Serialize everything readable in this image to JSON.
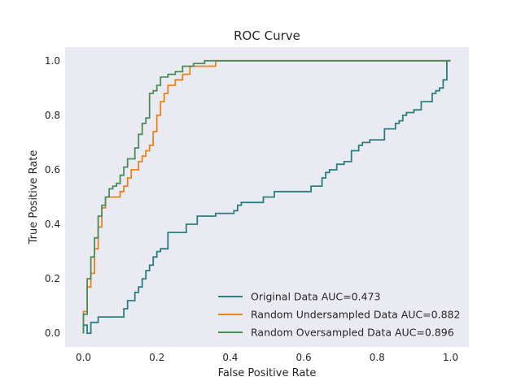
{
  "chart_data": {
    "type": "line",
    "title": "ROC Curve",
    "xlabel": "False Positive Rate",
    "ylabel": "True Positive Rate",
    "xlim": [
      -0.05,
      1.05
    ],
    "ylim": [
      -0.05,
      1.05
    ],
    "xticks": [
      "0.0",
      "0.2",
      "0.4",
      "0.6",
      "0.8",
      "1.0"
    ],
    "yticks": [
      "0.0",
      "0.2",
      "0.4",
      "0.6",
      "0.8",
      "1.0"
    ],
    "grid": false,
    "background": "#eaeaf2",
    "legend_position": "lower-right",
    "series": [
      {
        "name": "Original Data AUC=0.473",
        "color": "#2a7f7f",
        "x": [
          0.0,
          0.0,
          0.01,
          0.01,
          0.02,
          0.02,
          0.04,
          0.04,
          0.11,
          0.11,
          0.12,
          0.12,
          0.14,
          0.14,
          0.15,
          0.15,
          0.16,
          0.16,
          0.17,
          0.17,
          0.18,
          0.18,
          0.19,
          0.19,
          0.2,
          0.2,
          0.21,
          0.21,
          0.23,
          0.23,
          0.28,
          0.28,
          0.31,
          0.31,
          0.36,
          0.36,
          0.41,
          0.41,
          0.42,
          0.42,
          0.43,
          0.43,
          0.49,
          0.49,
          0.52,
          0.52,
          0.55,
          0.55,
          0.62,
          0.62,
          0.65,
          0.65,
          0.66,
          0.66,
          0.67,
          0.67,
          0.68,
          0.68,
          0.69,
          0.69,
          0.71,
          0.71,
          0.73,
          0.73,
          0.75,
          0.75,
          0.76,
          0.76,
          0.78,
          0.78,
          0.82,
          0.82,
          0.85,
          0.85,
          0.86,
          0.86,
          0.87,
          0.87,
          0.88,
          0.88,
          0.9,
          0.9,
          0.92,
          0.92,
          0.95,
          0.95,
          0.96,
          0.96,
          0.97,
          0.97,
          0.98,
          0.98,
          0.99,
          0.99,
          1.0
        ],
        "y": [
          0.0,
          0.03,
          0.03,
          0.0,
          0.0,
          0.04,
          0.04,
          0.06,
          0.06,
          0.09,
          0.09,
          0.12,
          0.12,
          0.15,
          0.15,
          0.17,
          0.17,
          0.2,
          0.2,
          0.23,
          0.23,
          0.25,
          0.25,
          0.28,
          0.28,
          0.3,
          0.3,
          0.31,
          0.31,
          0.37,
          0.37,
          0.4,
          0.4,
          0.43,
          0.43,
          0.44,
          0.44,
          0.45,
          0.45,
          0.47,
          0.47,
          0.48,
          0.48,
          0.5,
          0.5,
          0.52,
          0.52,
          0.52,
          0.52,
          0.54,
          0.54,
          0.57,
          0.57,
          0.59,
          0.59,
          0.6,
          0.6,
          0.6,
          0.6,
          0.62,
          0.62,
          0.63,
          0.63,
          0.67,
          0.67,
          0.69,
          0.69,
          0.7,
          0.7,
          0.71,
          0.71,
          0.75,
          0.75,
          0.77,
          0.77,
          0.78,
          0.78,
          0.8,
          0.8,
          0.81,
          0.81,
          0.82,
          0.82,
          0.85,
          0.85,
          0.88,
          0.88,
          0.89,
          0.89,
          0.9,
          0.9,
          0.93,
          0.93,
          1.0,
          1.0
        ]
      },
      {
        "name": "Random Undersampled Data AUC=0.882",
        "color": "#e8841a",
        "x": [
          0.0,
          0.0,
          0.01,
          0.01,
          0.02,
          0.02,
          0.03,
          0.03,
          0.04,
          0.04,
          0.05,
          0.05,
          0.06,
          0.06,
          0.07,
          0.07,
          0.08,
          0.08,
          0.09,
          0.09,
          0.1,
          0.1,
          0.11,
          0.11,
          0.12,
          0.12,
          0.13,
          0.13,
          0.14,
          0.14,
          0.15,
          0.15,
          0.16,
          0.16,
          0.17,
          0.17,
          0.18,
          0.18,
          0.19,
          0.19,
          0.2,
          0.2,
          0.21,
          0.21,
          0.22,
          0.22,
          0.23,
          0.23,
          0.25,
          0.25,
          0.27,
          0.27,
          0.29,
          0.29,
          0.3,
          0.3,
          0.31,
          0.31,
          0.33,
          0.33,
          0.36,
          0.36,
          1.0
        ],
        "y": [
          0.0,
          0.08,
          0.08,
          0.17,
          0.17,
          0.22,
          0.22,
          0.31,
          0.31,
          0.39,
          0.39,
          0.46,
          0.46,
          0.5,
          0.5,
          0.5,
          0.5,
          0.5,
          0.5,
          0.5,
          0.5,
          0.52,
          0.52,
          0.54,
          0.54,
          0.57,
          0.57,
          0.6,
          0.6,
          0.6,
          0.6,
          0.63,
          0.63,
          0.65,
          0.65,
          0.67,
          0.67,
          0.69,
          0.69,
          0.74,
          0.74,
          0.8,
          0.8,
          0.85,
          0.85,
          0.88,
          0.88,
          0.91,
          0.91,
          0.93,
          0.93,
          0.95,
          0.95,
          0.98,
          0.98,
          0.98,
          0.98,
          0.98,
          0.98,
          0.98,
          0.98,
          1.0,
          1.0
        ]
      },
      {
        "name": "Random Oversampled Data AUC=0.896",
        "color": "#4c8c5c",
        "x": [
          0.0,
          0.0,
          0.01,
          0.01,
          0.02,
          0.02,
          0.03,
          0.03,
          0.04,
          0.04,
          0.05,
          0.05,
          0.06,
          0.06,
          0.07,
          0.07,
          0.08,
          0.08,
          0.09,
          0.09,
          0.1,
          0.1,
          0.11,
          0.11,
          0.12,
          0.12,
          0.13,
          0.13,
          0.14,
          0.14,
          0.15,
          0.15,
          0.16,
          0.16,
          0.17,
          0.17,
          0.18,
          0.18,
          0.19,
          0.19,
          0.2,
          0.2,
          0.21,
          0.21,
          0.22,
          0.22,
          0.23,
          0.23,
          0.25,
          0.25,
          0.27,
          0.27,
          0.29,
          0.29,
          0.3,
          0.3,
          0.33,
          0.33,
          0.36,
          0.36,
          1.0
        ],
        "y": [
          0.0,
          0.07,
          0.07,
          0.2,
          0.2,
          0.28,
          0.28,
          0.35,
          0.35,
          0.43,
          0.43,
          0.47,
          0.47,
          0.5,
          0.5,
          0.53,
          0.53,
          0.54,
          0.54,
          0.55,
          0.55,
          0.58,
          0.58,
          0.61,
          0.61,
          0.64,
          0.64,
          0.64,
          0.64,
          0.68,
          0.68,
          0.73,
          0.73,
          0.77,
          0.77,
          0.79,
          0.79,
          0.88,
          0.88,
          0.89,
          0.89,
          0.91,
          0.91,
          0.94,
          0.94,
          0.94,
          0.94,
          0.95,
          0.95,
          0.96,
          0.96,
          0.98,
          0.98,
          0.98,
          0.98,
          0.99,
          0.99,
          1.0,
          1.0,
          1.0,
          1.0
        ]
      }
    ]
  }
}
